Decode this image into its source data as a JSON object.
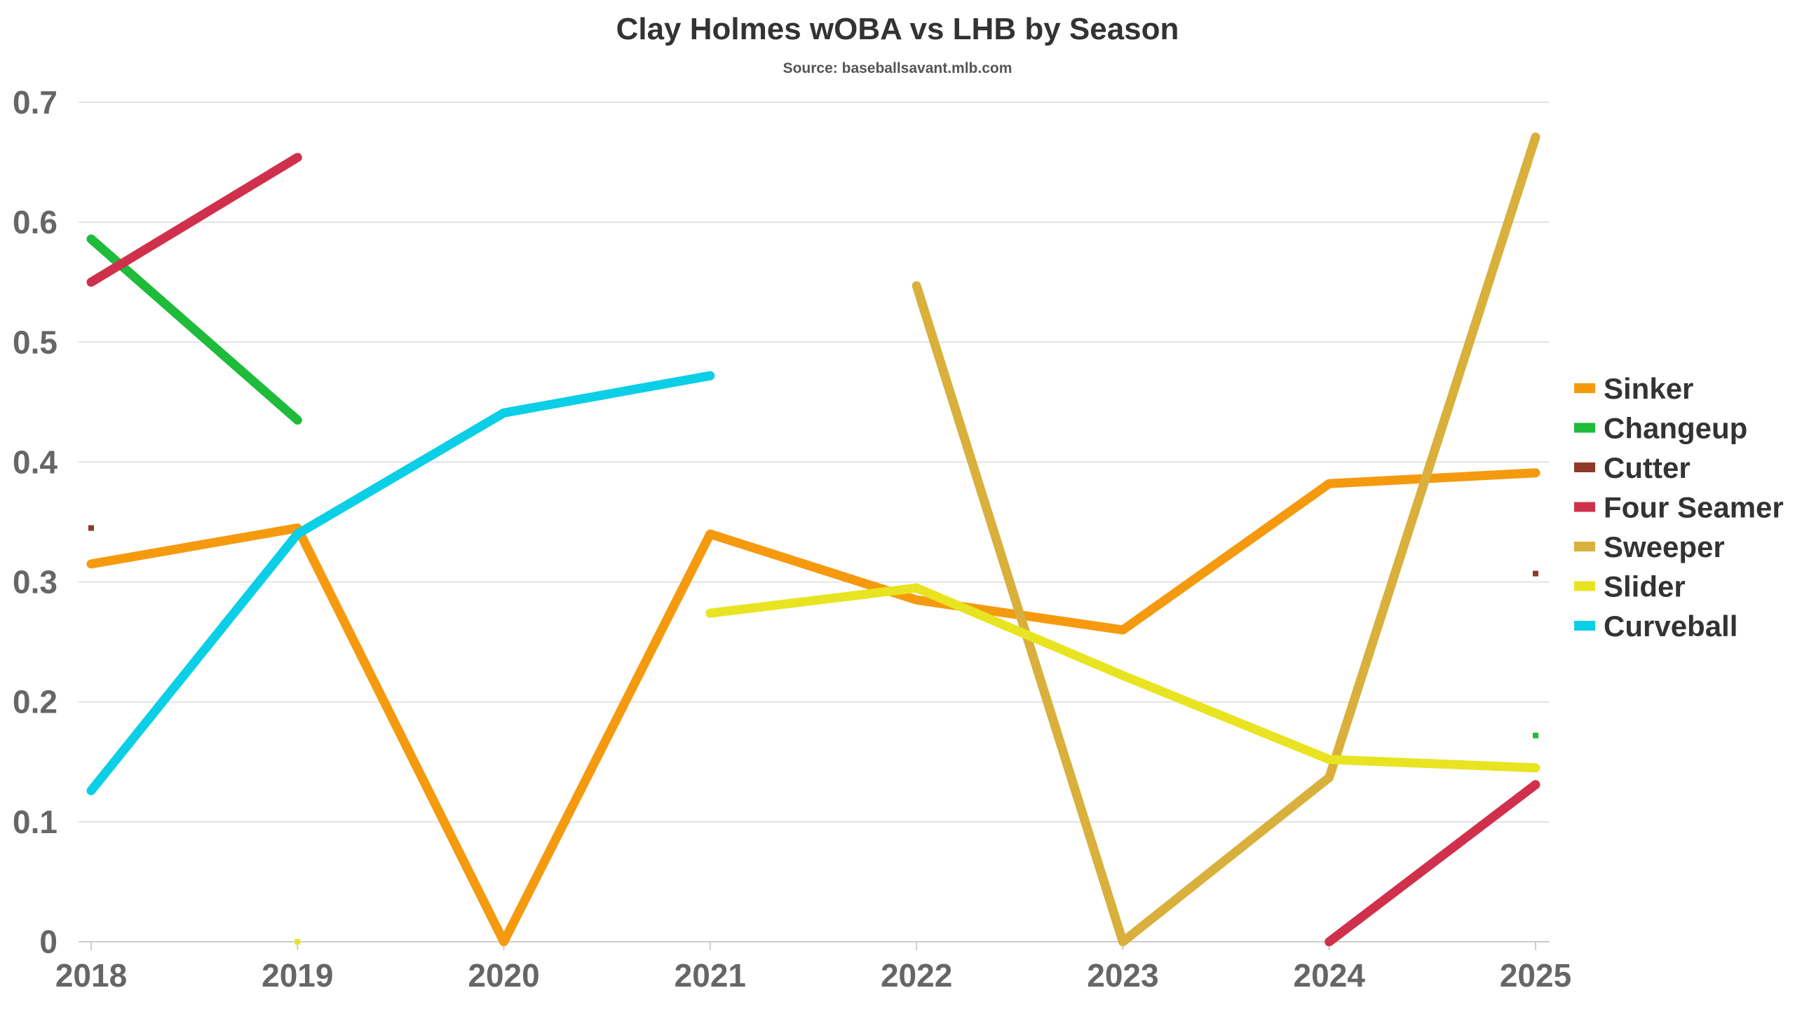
{
  "chart_data": {
    "type": "line",
    "title": "Clay Holmes wOBA vs LHB by Season",
    "subtitle": "Source: baseballsavant.mlb.com",
    "xlabel": "",
    "ylabel": "",
    "categories": [
      "2018",
      "2019",
      "2020",
      "2021",
      "2022",
      "2023",
      "2024",
      "2025"
    ],
    "ylim": [
      0,
      0.7
    ],
    "yticks": [
      0,
      0.1,
      0.2,
      0.3,
      0.4,
      0.5,
      0.6,
      0.7
    ],
    "ytick_labels": [
      "0",
      "0.1",
      "0.2",
      "0.3",
      "0.4",
      "0.5",
      "0.6",
      "0.7"
    ],
    "grid": true,
    "legend_position": "right",
    "series": [
      {
        "name": "Sinker",
        "color": "#F59A0E",
        "values": [
          0.315,
          0.345,
          0.0,
          0.34,
          0.285,
          0.26,
          0.382,
          0.391
        ]
      },
      {
        "name": "Changeup",
        "color": "#1FBB3B",
        "values": [
          0.586,
          0.435,
          null,
          null,
          null,
          null,
          null,
          0.172
        ]
      },
      {
        "name": "Cutter",
        "color": "#8E3A27",
        "values": [
          0.345,
          null,
          null,
          null,
          null,
          null,
          null,
          0.307
        ]
      },
      {
        "name": "Four Seamer",
        "color": "#D0304B",
        "values": [
          0.55,
          0.654,
          null,
          null,
          null,
          null,
          0.0,
          0.131
        ]
      },
      {
        "name": "Sweeper",
        "color": "#D9B03C",
        "values": [
          null,
          null,
          null,
          null,
          0.547,
          0.0,
          0.137,
          0.671
        ]
      },
      {
        "name": "Slider",
        "color": "#E8E421",
        "values": [
          null,
          0.0,
          null,
          0.274,
          0.295,
          0.222,
          0.152,
          0.145
        ]
      },
      {
        "name": "Curveball",
        "color": "#0BCFE6",
        "values": [
          0.126,
          0.34,
          0.441,
          0.472,
          null,
          null,
          null,
          null
        ]
      }
    ]
  }
}
